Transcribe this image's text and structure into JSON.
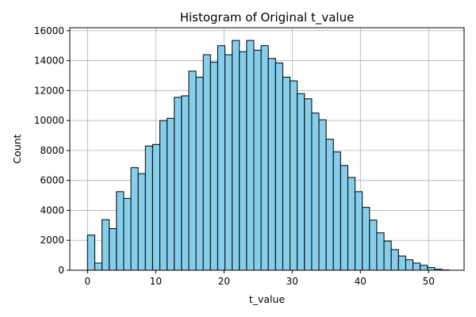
{
  "chart_data": {
    "type": "bar",
    "title": "Histogram of Original t_value",
    "xlabel": "t_value",
    "ylabel": "Count",
    "xlim": [
      -2.6,
      55.2
    ],
    "ylim": [
      0,
      16200
    ],
    "xticks": [
      0,
      10,
      20,
      30,
      40,
      50
    ],
    "yticks": [
      0,
      2000,
      4000,
      6000,
      8000,
      10000,
      12000,
      14000,
      16000
    ],
    "grid": true,
    "bin_start": 0,
    "bin_width": 1.06,
    "values": [
      2350,
      480,
      3380,
      2780,
      5250,
      4800,
      6850,
      6450,
      8300,
      8400,
      10000,
      10150,
      11550,
      11650,
      13300,
      12900,
      14400,
      13900,
      15000,
      14400,
      15350,
      14600,
      15350,
      14700,
      15000,
      14150,
      13850,
      12900,
      12650,
      11800,
      11450,
      10500,
      10050,
      8750,
      7900,
      7000,
      6200,
      5250,
      4200,
      3350,
      2500,
      1950,
      1380,
      950,
      700,
      480,
      330,
      180,
      70,
      20
    ],
    "colors": {
      "bar_fill": "#87ceeb",
      "bar_edge": "#000000",
      "grid": "#b0b0b0"
    }
  }
}
